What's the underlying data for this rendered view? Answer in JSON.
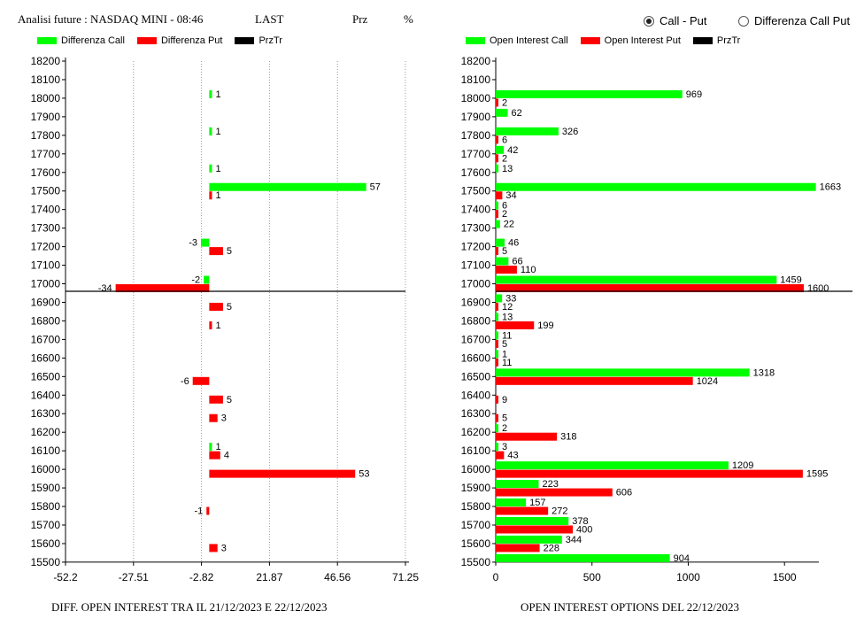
{
  "header": {
    "title": "Analisi future : NASDAQ MINI - 08:46",
    "last_label": "LAST",
    "prz_label": "Prz",
    "pct_label": "%"
  },
  "options": [
    {
      "label": "Call - Put",
      "selected": true
    },
    {
      "label": "Differenza Call Put",
      "selected": false
    }
  ],
  "colors": {
    "call": "#00ff00",
    "put": "#ff0000",
    "przTr": "#000000"
  },
  "footer": {
    "left": "DIFF. OPEN INTEREST TRA IL 21/12/2023 E 22/12/2023",
    "right": "OPEN INTEREST OPTIONS DEL 22/12/2023"
  },
  "chart_data": [
    {
      "type": "bar",
      "orientation": "horizontal",
      "legend": [
        "Differenza Call",
        "Differenza Put",
        "PrzTr"
      ],
      "strikes": [
        "18200",
        "18100",
        "18000",
        "17900",
        "17800",
        "17700",
        "17600",
        "17500",
        "17400",
        "17300",
        "17200",
        "17100",
        "17000",
        "16900",
        "16800",
        "16700",
        "16600",
        "16500",
        "16400",
        "16300",
        "16200",
        "16100",
        "16000",
        "15900",
        "15800",
        "15700",
        "15600",
        "15500"
      ],
      "series": [
        {
          "name": "Differenza Call",
          "values": [
            null,
            null,
            1,
            null,
            1,
            null,
            1,
            57,
            null,
            null,
            -3,
            null,
            -2,
            null,
            null,
            null,
            null,
            null,
            null,
            null,
            null,
            1,
            null,
            null,
            null,
            null,
            null,
            null
          ]
        },
        {
          "name": "Differenza Put",
          "values": [
            null,
            null,
            null,
            null,
            null,
            null,
            null,
            1,
            null,
            null,
            5,
            null,
            -34,
            5,
            1,
            null,
            null,
            -6,
            5,
            3,
            null,
            4,
            53,
            null,
            -1,
            null,
            3,
            null
          ]
        }
      ],
      "x_ticks": [
        "-52.2",
        "-27.51",
        "-2.82",
        "21.87",
        "46.56",
        "71.25"
      ],
      "xlim": [
        -52.2,
        71.25
      ],
      "przTr_strike": 16950
    },
    {
      "type": "bar",
      "orientation": "horizontal",
      "legend": [
        "Open Interest Call",
        "Open Interest Put",
        "PrzTr"
      ],
      "strikes": [
        "18200",
        "18100",
        "18000",
        "17900",
        "17800",
        "17700",
        "17600",
        "17500",
        "17400",
        "17300",
        "17200",
        "17100",
        "17000",
        "16900",
        "16800",
        "16700",
        "16600",
        "16500",
        "16400",
        "16300",
        "16200",
        "16100",
        "16000",
        "15900",
        "15800",
        "15700",
        "15600",
        "15500"
      ],
      "series": [
        {
          "name": "Open Interest Call",
          "values": [
            null,
            null,
            969,
            62,
            326,
            42,
            13,
            1663,
            6,
            22,
            46,
            66,
            1459,
            33,
            13,
            11,
            1,
            1318,
            null,
            null,
            2,
            3,
            1209,
            223,
            157,
            378,
            344,
            904
          ]
        },
        {
          "name": "Open Interest Put",
          "values": [
            null,
            null,
            2,
            null,
            6,
            2,
            null,
            34,
            2,
            null,
            5,
            110,
            1600,
            12,
            199,
            5,
            11,
            1024,
            9,
            5,
            318,
            43,
            1595,
            606,
            272,
            400,
            228,
            null
          ]
        }
      ],
      "x_ticks": [
        "0",
        "500",
        "1000",
        "1500"
      ],
      "xlim": [
        0,
        1660
      ],
      "przTr_strike": 16950
    }
  ]
}
